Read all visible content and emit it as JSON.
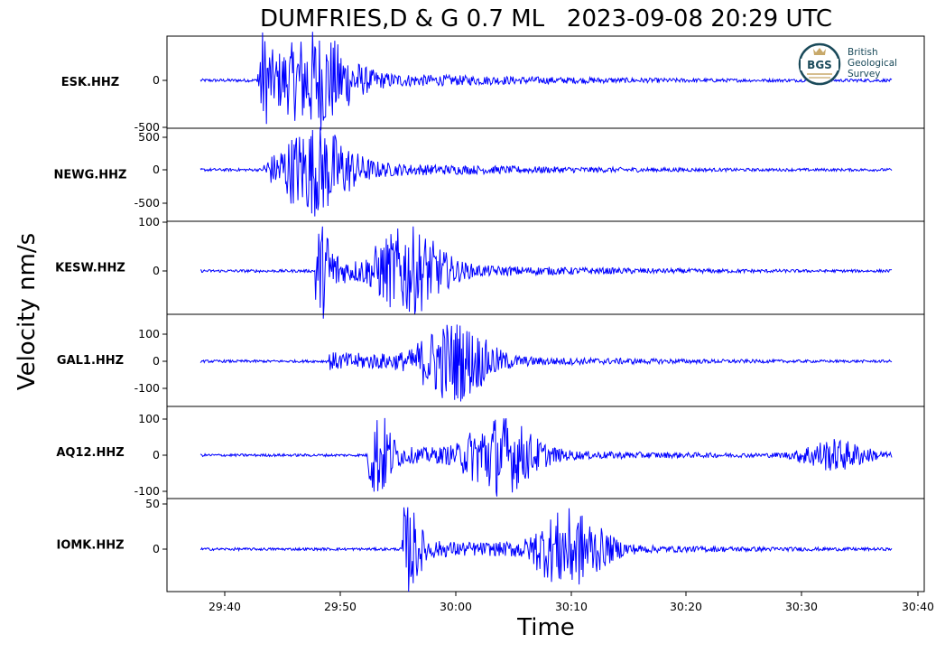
{
  "chart_data": {
    "type": "line",
    "title": "DUMFRIES,D & G 0.7 ML   2023-09-08 20:29 UTC",
    "xlabel": "Time",
    "ylabel": "Velocity nm/s",
    "x_ticks": [
      "29:40",
      "29:50",
      "30:00",
      "30:10",
      "30:20",
      "30:30",
      "30:40"
    ],
    "x_range": [
      "29:37.5",
      "30:37.5"
    ],
    "grid": false,
    "line_color": "#0000ff",
    "panels": [
      {
        "name": "ESK.HHZ",
        "yticks": [
          "0",
          "-500"
        ],
        "onset_s": 5.0,
        "peaks_s": [
          5.0,
          10.0
        ]
      },
      {
        "name": "NEWG.HHZ",
        "yticks": [
          "500",
          "0",
          "-500"
        ],
        "onset_s": 5.5,
        "peaks_s": [
          10.0
        ]
      },
      {
        "name": "KESW.HHZ",
        "yticks": [
          "100",
          "0"
        ],
        "onset_s": 10.0,
        "peaks_s": [
          10.5,
          18.0
        ]
      },
      {
        "name": "GAL1.HHZ",
        "yticks": [
          "100",
          "0",
          "-100"
        ],
        "onset_s": 11.0,
        "peaks_s": [
          22.0
        ]
      },
      {
        "name": "AQ12.HHZ",
        "yticks": [
          "100",
          "0",
          "-100"
        ],
        "onset_s": 14.5,
        "peaks_s": [
          15.5,
          26.0,
          55.0
        ]
      },
      {
        "name": "IOMK.HHZ",
        "yticks": [
          "50",
          "0"
        ],
        "onset_s": 17.5,
        "peaks_s": [
          18.0,
          32.0
        ]
      }
    ]
  },
  "logo": {
    "abbr": "BGS",
    "line1": "British",
    "line2": "Geological",
    "line3": "Survey"
  }
}
